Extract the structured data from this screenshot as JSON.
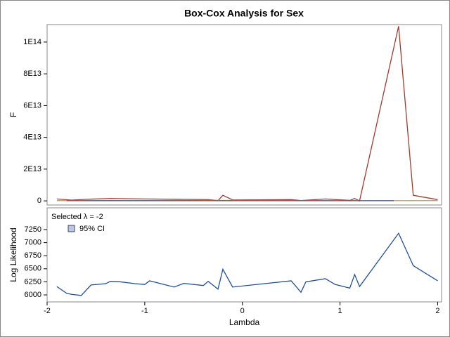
{
  "title": "Box-Cox Analysis for Sex",
  "chart_data": [
    {
      "type": "line",
      "y_label": "F",
      "xlim": [
        -2,
        2.04
      ],
      "ylim": [
        -2600000000000,
        111000000000000
      ],
      "yticks": [
        {
          "value": 0,
          "label": "0"
        },
        {
          "value": 20000000000000,
          "label": "2E13"
        },
        {
          "value": 40000000000000,
          "label": "4E13"
        },
        {
          "value": 60000000000000,
          "label": "6E13"
        },
        {
          "value": 80000000000000,
          "label": "8E13"
        },
        {
          "value": 100000000000000,
          "label": "1E14"
        }
      ],
      "series": [
        {
          "color": "#a23a2e",
          "x": [
            -1.9,
            -1.75,
            -1.6,
            -1.35,
            -1.0,
            -0.6,
            -0.35,
            -0.25,
            -0.2,
            -0.1,
            0.5,
            0.6,
            0.85,
            1.1,
            1.15,
            1.2,
            1.6,
            1.75,
            2.0
          ],
          "values": [
            1200000000000,
            500000000000,
            1000000000000,
            1500000000000,
            1200000000000,
            1000000000000,
            800000000000,
            200000000000,
            3500000000000,
            600000000000,
            800000000000,
            200000000000,
            1200000000000,
            300000000000,
            1500000000000,
            0,
            110000000000000,
            3500000000000,
            800000000000
          ]
        },
        {
          "color": "#d8a020",
          "x": [
            -1.9,
            -1.0,
            -0.2,
            0.5,
            1.2,
            2.0
          ],
          "values": [
            200000000000,
            200000000000,
            300000000000,
            200000000000,
            100000000000,
            200000000000
          ]
        },
        {
          "color": "#445694",
          "x": [
            -1.8,
            -1.45,
            -1.0,
            -0.55,
            -0.3,
            0.15,
            0.6,
            0.85,
            1.1,
            1.55
          ],
          "values": [
            100000000000,
            100000000000,
            100000000000,
            100000000000,
            100000000000,
            100000000000,
            100000000000,
            100000000000,
            100000000000,
            100000000000
          ]
        }
      ]
    },
    {
      "type": "line",
      "y_label": "Log Likelihood",
      "x_label": "Lambda",
      "annotation": "Selected λ = -2",
      "ci_label": "95% CI",
      "ci_color": "#b9c8e8",
      "xlim": [
        -2,
        2.04
      ],
      "xticks": [
        -2,
        -1,
        0,
        1,
        2
      ],
      "ylim": [
        5866,
        7667
      ],
      "yticks": [
        6000,
        6250,
        6500,
        6750,
        7000,
        7250
      ],
      "series": [
        {
          "color": "#1f4e9c",
          "x": [
            -1.9,
            -1.8,
            -1.75,
            -1.65,
            -1.55,
            -1.4,
            -1.35,
            -1.25,
            -1.1,
            -1.0,
            -0.95,
            -0.7,
            -0.6,
            -0.4,
            -0.35,
            -0.25,
            -0.2,
            -0.1,
            0.5,
            0.6,
            0.65,
            0.85,
            0.95,
            1.1,
            1.15,
            1.2,
            1.6,
            1.75,
            2.0
          ],
          "values": [
            6160,
            6030,
            6010,
            5990,
            6190,
            6215,
            6260,
            6250,
            6215,
            6200,
            6270,
            6150,
            6220,
            6180,
            6260,
            6110,
            6490,
            6150,
            6270,
            6050,
            6250,
            6310,
            6200,
            6130,
            6390,
            6160,
            7180,
            6560,
            6270
          ]
        }
      ]
    }
  ]
}
